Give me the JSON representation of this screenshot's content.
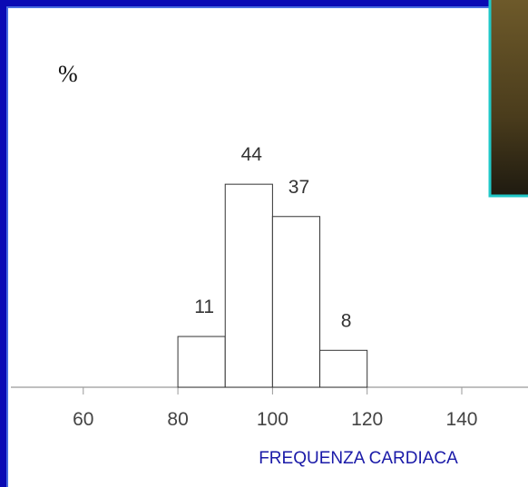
{
  "chart_data": {
    "type": "histogram",
    "y_label": "%",
    "x_label": "FREQUENZA CARDIACA",
    "bins": [
      80,
      90,
      100,
      110,
      120
    ],
    "values": [
      11,
      44,
      37,
      8
    ],
    "xlim": [
      44.7,
      154
    ],
    "xticks": [
      60,
      80,
      100,
      120,
      140
    ],
    "ylim": [
      0,
      80
    ],
    "bar_fill": "#ffffff",
    "bar_edge": "#333333"
  }
}
